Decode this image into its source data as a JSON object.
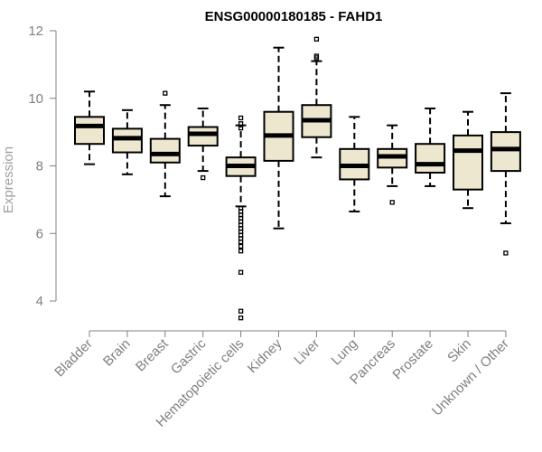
{
  "chart_data": {
    "type": "box",
    "title": "ENSG00000180185 - FAHD1",
    "xlabel": "",
    "ylabel": "Expression",
    "ylim": [
      3.4,
      12.0
    ],
    "yticks": [
      4,
      6,
      8,
      10,
      12
    ],
    "grid": false,
    "box_fill": "#ede7cf",
    "categories": [
      "Bladder",
      "Brain",
      "Breast",
      "Gastric",
      "Hematopoietic cells",
      "Kidney",
      "Liver",
      "Lung",
      "Pancreas",
      "Prostate",
      "Skin",
      "Unknown / Other"
    ],
    "boxes": [
      {
        "category": "Bladder",
        "whisker_low": 8.05,
        "q1": 8.65,
        "median": 9.18,
        "q3": 9.45,
        "whisker_high": 10.2,
        "outliers": []
      },
      {
        "category": "Brain",
        "whisker_low": 7.75,
        "q1": 8.4,
        "median": 8.82,
        "q3": 9.1,
        "whisker_high": 9.65,
        "outliers": []
      },
      {
        "category": "Breast",
        "whisker_low": 7.1,
        "q1": 8.1,
        "median": 8.35,
        "q3": 8.8,
        "whisker_high": 9.8,
        "outliers": [
          10.15
        ]
      },
      {
        "category": "Gastric",
        "whisker_low": 7.85,
        "q1": 8.6,
        "median": 8.95,
        "q3": 9.15,
        "whisker_high": 9.7,
        "outliers": [
          7.65
        ]
      },
      {
        "category": "Hematopoietic cells",
        "whisker_low": 6.8,
        "q1": 7.7,
        "median": 8.0,
        "q3": 8.25,
        "whisker_high": 9.2,
        "outliers": [
          9.42,
          9.25,
          9.12,
          6.75,
          6.65,
          6.55,
          6.45,
          6.35,
          6.25,
          6.15,
          6.05,
          5.95,
          5.85,
          5.75,
          5.62,
          5.48,
          4.85,
          3.7,
          3.5
        ]
      },
      {
        "category": "Kidney",
        "whisker_low": 6.15,
        "q1": 8.15,
        "median": 8.9,
        "q3": 9.6,
        "whisker_high": 11.5,
        "outliers": []
      },
      {
        "category": "Liver",
        "whisker_low": 8.25,
        "q1": 8.85,
        "median": 9.35,
        "q3": 9.8,
        "whisker_high": 11.1,
        "outliers": [
          11.75,
          11.25,
          11.2
        ]
      },
      {
        "category": "Lung",
        "whisker_low": 6.65,
        "q1": 7.6,
        "median": 8.0,
        "q3": 8.5,
        "whisker_high": 9.45,
        "outliers": []
      },
      {
        "category": "Pancreas",
        "whisker_low": 7.4,
        "q1": 7.95,
        "median": 8.28,
        "q3": 8.5,
        "whisker_high": 9.2,
        "outliers": [
          6.92
        ]
      },
      {
        "category": "Prostate",
        "whisker_low": 7.4,
        "q1": 7.8,
        "median": 8.05,
        "q3": 8.65,
        "whisker_high": 9.7,
        "outliers": []
      },
      {
        "category": "Skin",
        "whisker_low": 6.75,
        "q1": 7.3,
        "median": 8.45,
        "q3": 8.9,
        "whisker_high": 9.6,
        "outliers": []
      },
      {
        "category": "Unknown / Other",
        "whisker_low": 6.3,
        "q1": 7.85,
        "median": 8.5,
        "q3": 9.0,
        "whisker_high": 10.15,
        "outliers": [
          5.42
        ]
      }
    ]
  }
}
